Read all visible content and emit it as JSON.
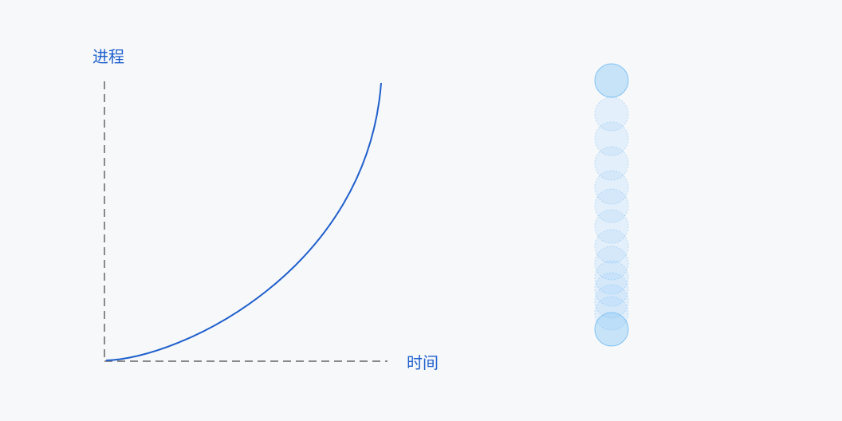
{
  "diagram": {
    "y_axis_label": "进程",
    "x_axis_label": "时间",
    "curve_color": "#1f5fcc",
    "axis_color": "#8a8a8a",
    "ball_color": "#8ec9f7",
    "ball_edge_color": "#5bb0ef",
    "ball_trail_count": 12
  }
}
